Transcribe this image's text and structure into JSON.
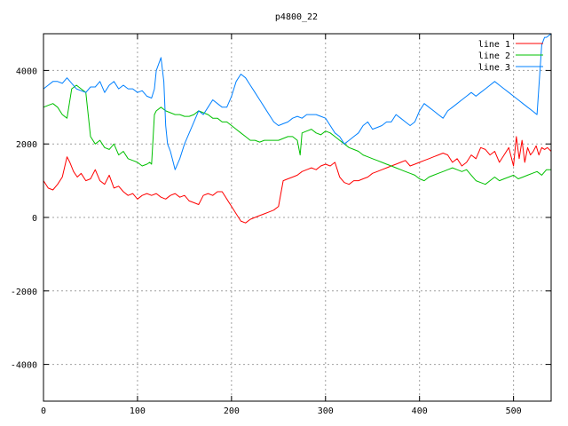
{
  "chart_data": {
    "type": "line",
    "title": "p4800_22",
    "xlabel": "",
    "ylabel": "",
    "xlim": [
      0,
      540
    ],
    "ylim": [
      -5000,
      5000
    ],
    "xticks": [
      0,
      100,
      200,
      300,
      400,
      500
    ],
    "yticks": [
      -4000,
      -2000,
      0,
      2000,
      4000
    ],
    "grid": true,
    "legend_position": "top-right",
    "series": [
      {
        "name": "line 1",
        "color": "#ff0000",
        "x": [
          0,
          5,
          10,
          15,
          20,
          25,
          28,
          32,
          36,
          40,
          45,
          50,
          55,
          60,
          65,
          70,
          75,
          80,
          85,
          90,
          95,
          100,
          105,
          110,
          115,
          120,
          125,
          130,
          135,
          140,
          145,
          150,
          155,
          160,
          165,
          170,
          175,
          180,
          185,
          190,
          195,
          200,
          205,
          210,
          215,
          220,
          225,
          230,
          235,
          240,
          245,
          250,
          255,
          260,
          265,
          270,
          275,
          280,
          285,
          290,
          295,
          300,
          305,
          310,
          315,
          320,
          325,
          330,
          335,
          340,
          345,
          350,
          355,
          360,
          365,
          370,
          375,
          380,
          385,
          390,
          395,
          400,
          405,
          410,
          415,
          420,
          425,
          430,
          435,
          440,
          445,
          450,
          455,
          460,
          465,
          470,
          475,
          480,
          485,
          490,
          495,
          500,
          503,
          506,
          509,
          512,
          515,
          518,
          521,
          524,
          527,
          530,
          533,
          536,
          540
        ],
        "y": [
          1000,
          800,
          750,
          900,
          1100,
          1650,
          1500,
          1250,
          1100,
          1200,
          1000,
          1050,
          1300,
          1000,
          900,
          1150,
          800,
          850,
          700,
          600,
          650,
          500,
          600,
          650,
          600,
          650,
          550,
          500,
          600,
          650,
          550,
          600,
          450,
          400,
          350,
          600,
          650,
          600,
          700,
          700,
          500,
          300,
          100,
          -100,
          -150,
          -50,
          0,
          50,
          100,
          150,
          200,
          300,
          1000,
          1050,
          1100,
          1150,
          1250,
          1300,
          1350,
          1300,
          1400,
          1450,
          1400,
          1500,
          1100,
          950,
          900,
          1000,
          1000,
          1050,
          1100,
          1200,
          1250,
          1300,
          1350,
          1400,
          1450,
          1500,
          1550,
          1400,
          1450,
          1500,
          1550,
          1600,
          1650,
          1700,
          1750,
          1700,
          1500,
          1600,
          1400,
          1500,
          1700,
          1600,
          1900,
          1850,
          1700,
          1800,
          1500,
          1700,
          1900,
          1400,
          2200,
          1600,
          2100,
          1500,
          1900,
          1700,
          1800,
          1950,
          1700,
          1900,
          1850,
          1900,
          1800
        ]
      },
      {
        "name": "line 2",
        "color": "#00c000",
        "x": [
          0,
          5,
          10,
          15,
          20,
          25,
          30,
          35,
          40,
          45,
          50,
          55,
          60,
          65,
          70,
          75,
          80,
          85,
          90,
          95,
          100,
          105,
          110,
          113,
          115,
          118,
          120,
          125,
          130,
          135,
          140,
          145,
          150,
          155,
          160,
          165,
          170,
          175,
          180,
          185,
          190,
          195,
          200,
          205,
          210,
          215,
          220,
          225,
          230,
          235,
          240,
          245,
          250,
          255,
          260,
          265,
          270,
          273,
          275,
          280,
          285,
          290,
          295,
          300,
          305,
          310,
          315,
          320,
          325,
          330,
          335,
          340,
          345,
          350,
          355,
          360,
          365,
          370,
          375,
          380,
          385,
          390,
          395,
          400,
          405,
          410,
          415,
          420,
          425,
          430,
          435,
          440,
          445,
          450,
          455,
          460,
          465,
          470,
          475,
          480,
          485,
          490,
          495,
          500,
          505,
          510,
          515,
          520,
          525,
          530,
          535,
          540
        ],
        "y": [
          3000,
          3050,
          3100,
          3000,
          2800,
          2700,
          3500,
          3600,
          3500,
          3400,
          2200,
          2000,
          2100,
          1900,
          1850,
          2000,
          1700,
          1800,
          1600,
          1550,
          1500,
          1400,
          1450,
          1500,
          1450,
          2800,
          2900,
          3000,
          2900,
          2850,
          2800,
          2800,
          2750,
          2750,
          2800,
          2900,
          2850,
          2800,
          2700,
          2700,
          2600,
          2600,
          2500,
          2400,
          2300,
          2200,
          2100,
          2100,
          2050,
          2100,
          2100,
          2100,
          2100,
          2150,
          2200,
          2200,
          2100,
          1700,
          2300,
          2350,
          2400,
          2300,
          2250,
          2350,
          2300,
          2200,
          2100,
          2000,
          1900,
          1850,
          1800,
          1700,
          1650,
          1600,
          1550,
          1500,
          1450,
          1400,
          1350,
          1300,
          1250,
          1200,
          1150,
          1050,
          1000,
          1100,
          1150,
          1200,
          1250,
          1300,
          1350,
          1300,
          1250,
          1300,
          1150,
          1000,
          950,
          900,
          1000,
          1100,
          1000,
          1050,
          1100,
          1150,
          1050,
          1100,
          1150,
          1200,
          1250,
          1150,
          1300,
          1300
        ]
      },
      {
        "name": "line 3",
        "color": "#0080ff",
        "x": [
          0,
          5,
          10,
          15,
          20,
          25,
          30,
          35,
          40,
          45,
          50,
          55,
          60,
          65,
          70,
          75,
          80,
          85,
          90,
          95,
          100,
          105,
          110,
          115,
          118,
          120,
          125,
          128,
          130,
          132,
          135,
          138,
          140,
          145,
          150,
          155,
          160,
          165,
          170,
          175,
          180,
          185,
          190,
          195,
          200,
          205,
          210,
          215,
          220,
          225,
          230,
          235,
          240,
          245,
          250,
          255,
          260,
          265,
          270,
          275,
          280,
          285,
          290,
          295,
          300,
          305,
          310,
          315,
          320,
          325,
          330,
          335,
          340,
          345,
          350,
          355,
          360,
          365,
          370,
          375,
          380,
          385,
          390,
          395,
          400,
          405,
          410,
          415,
          420,
          425,
          430,
          435,
          440,
          445,
          450,
          455,
          460,
          465,
          470,
          475,
          480,
          485,
          490,
          495,
          500,
          505,
          510,
          515,
          520,
          525,
          530,
          533,
          535,
          540
        ],
        "y": [
          3500,
          3600,
          3700,
          3700,
          3650,
          3800,
          3650,
          3500,
          3450,
          3400,
          3550,
          3550,
          3700,
          3400,
          3600,
          3700,
          3500,
          3600,
          3500,
          3500,
          3400,
          3450,
          3300,
          3250,
          3500,
          4000,
          4350,
          3700,
          2500,
          2000,
          1800,
          1500,
          1300,
          1600,
          2000,
          2300,
          2600,
          2900,
          2800,
          3000,
          3200,
          3100,
          3000,
          3000,
          3300,
          3700,
          3900,
          3800,
          3600,
          3400,
          3200,
          3000,
          2800,
          2600,
          2500,
          2550,
          2600,
          2700,
          2750,
          2700,
          2800,
          2800,
          2800,
          2750,
          2700,
          2500,
          2300,
          2200,
          2000,
          2100,
          2200,
          2300,
          2500,
          2600,
          2400,
          2450,
          2500,
          2600,
          2600,
          2800,
          2700,
          2600,
          2500,
          2600,
          2900,
          3100,
          3000,
          2900,
          2800,
          2700,
          2900,
          3000,
          3100,
          3200,
          3300,
          3400,
          3300,
          3400,
          3500,
          3600,
          3700,
          3600,
          3500,
          3400,
          3300,
          3200,
          3100,
          3000,
          2900,
          2800,
          4700,
          4900,
          4900,
          5000
        ]
      }
    ]
  }
}
